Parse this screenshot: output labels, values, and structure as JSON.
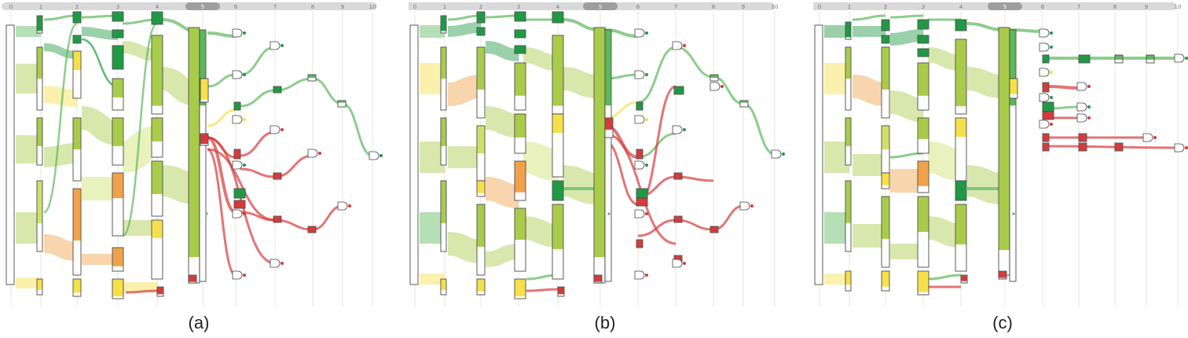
{
  "panels": [
    {
      "id": "a",
      "caption": "(a)"
    },
    {
      "id": "b",
      "caption": "(b)"
    },
    {
      "id": "c",
      "caption": "(c)"
    }
  ],
  "timeline": {
    "ticks": [
      "0",
      "1",
      "2",
      "3",
      "4",
      "5",
      "6",
      "7",
      "8",
      "9",
      "10"
    ],
    "current": "5"
  },
  "colors": {
    "dark_green": "#1e9a43",
    "mid_green": "#5cb85c",
    "light_green": "#a8cc4a",
    "yellow_green": "#cfe06a",
    "yellow": "#f5e04a",
    "orange": "#f0a14a",
    "red": "#d63a3a",
    "track": "#d9d9d9"
  }
}
